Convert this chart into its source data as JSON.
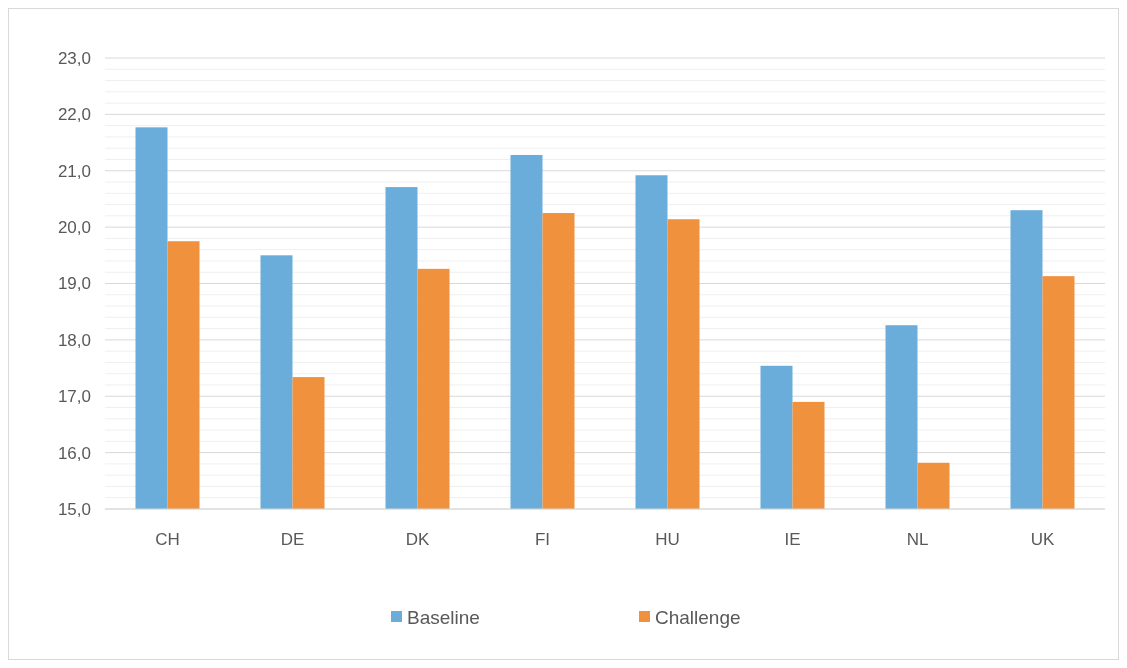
{
  "chart_data": {
    "type": "bar",
    "categories": [
      "CH",
      "DE",
      "DK",
      "FI",
      "HU",
      "IE",
      "NL",
      "UK"
    ],
    "series": [
      {
        "name": "Baseline",
        "color": "#6aaddb",
        "values": [
          21.77,
          19.5,
          20.71,
          21.28,
          20.92,
          17.54,
          18.26,
          20.3
        ]
      },
      {
        "name": "Challenge",
        "color": "#f0913e",
        "values": [
          19.75,
          17.34,
          19.26,
          20.25,
          20.14,
          16.9,
          15.82,
          19.13
        ]
      }
    ],
    "ylim": [
      15,
      23
    ],
    "yticks": [
      {
        "value": 15,
        "label": "15,0"
      },
      {
        "value": 15.2,
        "label": null
      },
      {
        "value": 15.4,
        "label": null
      },
      {
        "value": 15.6,
        "label": null
      },
      {
        "value": 15.8,
        "label": null
      },
      {
        "value": 16,
        "label": "16,0"
      },
      {
        "value": 16.2,
        "label": null
      },
      {
        "value": 16.4,
        "label": null
      },
      {
        "value": 16.6,
        "label": null
      },
      {
        "value": 16.8,
        "label": null
      },
      {
        "value": 17,
        "label": "17,0"
      },
      {
        "value": 17.2,
        "label": null
      },
      {
        "value": 17.4,
        "label": null
      },
      {
        "value": 17.6,
        "label": null
      },
      {
        "value": 17.8,
        "label": null
      },
      {
        "value": 18,
        "label": "18,0"
      },
      {
        "value": 18.2,
        "label": null
      },
      {
        "value": 18.4,
        "label": null
      },
      {
        "value": 18.6,
        "label": null
      },
      {
        "value": 18.8,
        "label": null
      },
      {
        "value": 19,
        "label": "19,0"
      },
      {
        "value": 19.2,
        "label": null
      },
      {
        "value": 19.4,
        "label": null
      },
      {
        "value": 19.6,
        "label": null
      },
      {
        "value": 19.8,
        "label": null
      },
      {
        "value": 20,
        "label": "20,0"
      },
      {
        "value": 20.2,
        "label": null
      },
      {
        "value": 20.4,
        "label": null
      },
      {
        "value": 20.6,
        "label": null
      },
      {
        "value": 20.8,
        "label": null
      },
      {
        "value": 21,
        "label": "21,0"
      },
      {
        "value": 21.2,
        "label": null
      },
      {
        "value": 21.4,
        "label": null
      },
      {
        "value": 21.6,
        "label": null
      },
      {
        "value": 21.8,
        "label": null
      },
      {
        "value": 22,
        "label": "22,0"
      },
      {
        "value": 22.2,
        "label": null
      },
      {
        "value": 22.4,
        "label": null
      },
      {
        "value": 22.6,
        "label": null
      },
      {
        "value": 22.8,
        "label": null
      },
      {
        "value": 23,
        "label": "23,0"
      }
    ],
    "grid": true,
    "legend": "bottom"
  }
}
